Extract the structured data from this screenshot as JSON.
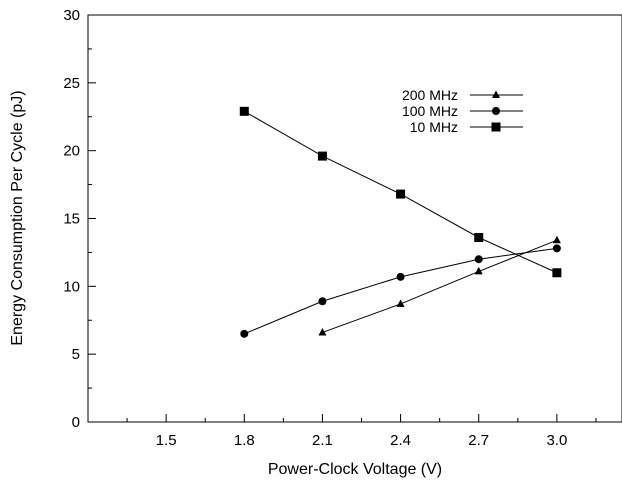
{
  "chart_data": {
    "type": "line",
    "title": "",
    "xlabel": "Power-Clock Voltage (V)",
    "ylabel": "Energy Consumption Per Cycle (pJ)",
    "xlim": [
      1.2,
      3.25
    ],
    "ylim": [
      0,
      30
    ],
    "x_ticks": [
      1.5,
      1.8,
      2.1,
      2.4,
      2.7,
      3.0
    ],
    "x_tick_labels": [
      "1.5",
      "1.8",
      "2.1",
      "2.4",
      "2.7",
      "3.0"
    ],
    "y_ticks": [
      0,
      5,
      10,
      15,
      20,
      25,
      30
    ],
    "y_tick_labels": [
      "0",
      "5",
      "10",
      "15",
      "20",
      "25",
      "30"
    ],
    "grid": false,
    "legend_position": "top-right",
    "series": [
      {
        "name": "200 MHz",
        "marker": "triangle",
        "color": "#000000",
        "x": [
          2.1,
          2.4,
          2.7,
          3.0
        ],
        "y": [
          6.6,
          8.7,
          11.1,
          13.4
        ]
      },
      {
        "name": "100 MHz",
        "marker": "circle",
        "color": "#000000",
        "x": [
          1.8,
          2.1,
          2.4,
          2.7,
          3.0
        ],
        "y": [
          6.5,
          8.9,
          10.7,
          12.0,
          12.8
        ]
      },
      {
        "name": "10 MHz",
        "marker": "square",
        "color": "#000000",
        "x": [
          1.8,
          2.1,
          2.4,
          2.7,
          3.0
        ],
        "y": [
          22.9,
          19.6,
          16.8,
          13.6,
          11.0
        ]
      }
    ]
  }
}
